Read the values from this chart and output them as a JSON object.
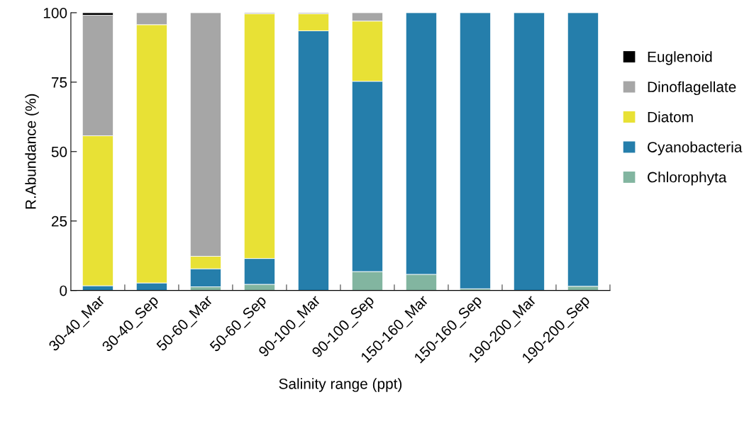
{
  "chart_data": {
    "type": "bar",
    "stacked": true,
    "xlabel": "Salinity range (ppt)",
    "ylabel": "R.Abundance (%)",
    "categories": [
      "30-40_Mar",
      "30-40_Sep",
      "50-60_Mar",
      "50-60_Sep",
      "90-100_Mar",
      "90-100_Sep",
      "150-160_Mar",
      "150-160_Sep",
      "190-200_Mar",
      "190-200_Sep"
    ],
    "series": [
      {
        "name": "Chlorophyta",
        "color": "#82b5a0",
        "values": [
          0,
          0,
          1.3,
          2.2,
          0,
          6.8,
          5.8,
          0.6,
          0,
          1.5
        ]
      },
      {
        "name": "Cyanobacteria",
        "color": "#257eab",
        "values": [
          1.7,
          2.7,
          6.5,
          9.3,
          93.5,
          68.5,
          94.2,
          99.4,
          100,
          98.5
        ]
      },
      {
        "name": "Diatom",
        "color": "#e8e135",
        "values": [
          54.0,
          93.0,
          4.5,
          88.1,
          6.1,
          21.7,
          0,
          0,
          0,
          0
        ]
      },
      {
        "name": "Dinoflagellate",
        "color": "#a6a6a6",
        "values": [
          43.4,
          4.3,
          87.7,
          0.4,
          0.4,
          3.0,
          0,
          0,
          0,
          0
        ]
      },
      {
        "name": "Euglenoid",
        "color": "#000000",
        "values": [
          0.9,
          0,
          0,
          0,
          0,
          0,
          0,
          0,
          0,
          0
        ]
      }
    ],
    "ylim": [
      0,
      100
    ],
    "yticks": [
      0,
      25,
      50,
      75,
      100
    ],
    "grid": false,
    "legend": "right"
  }
}
